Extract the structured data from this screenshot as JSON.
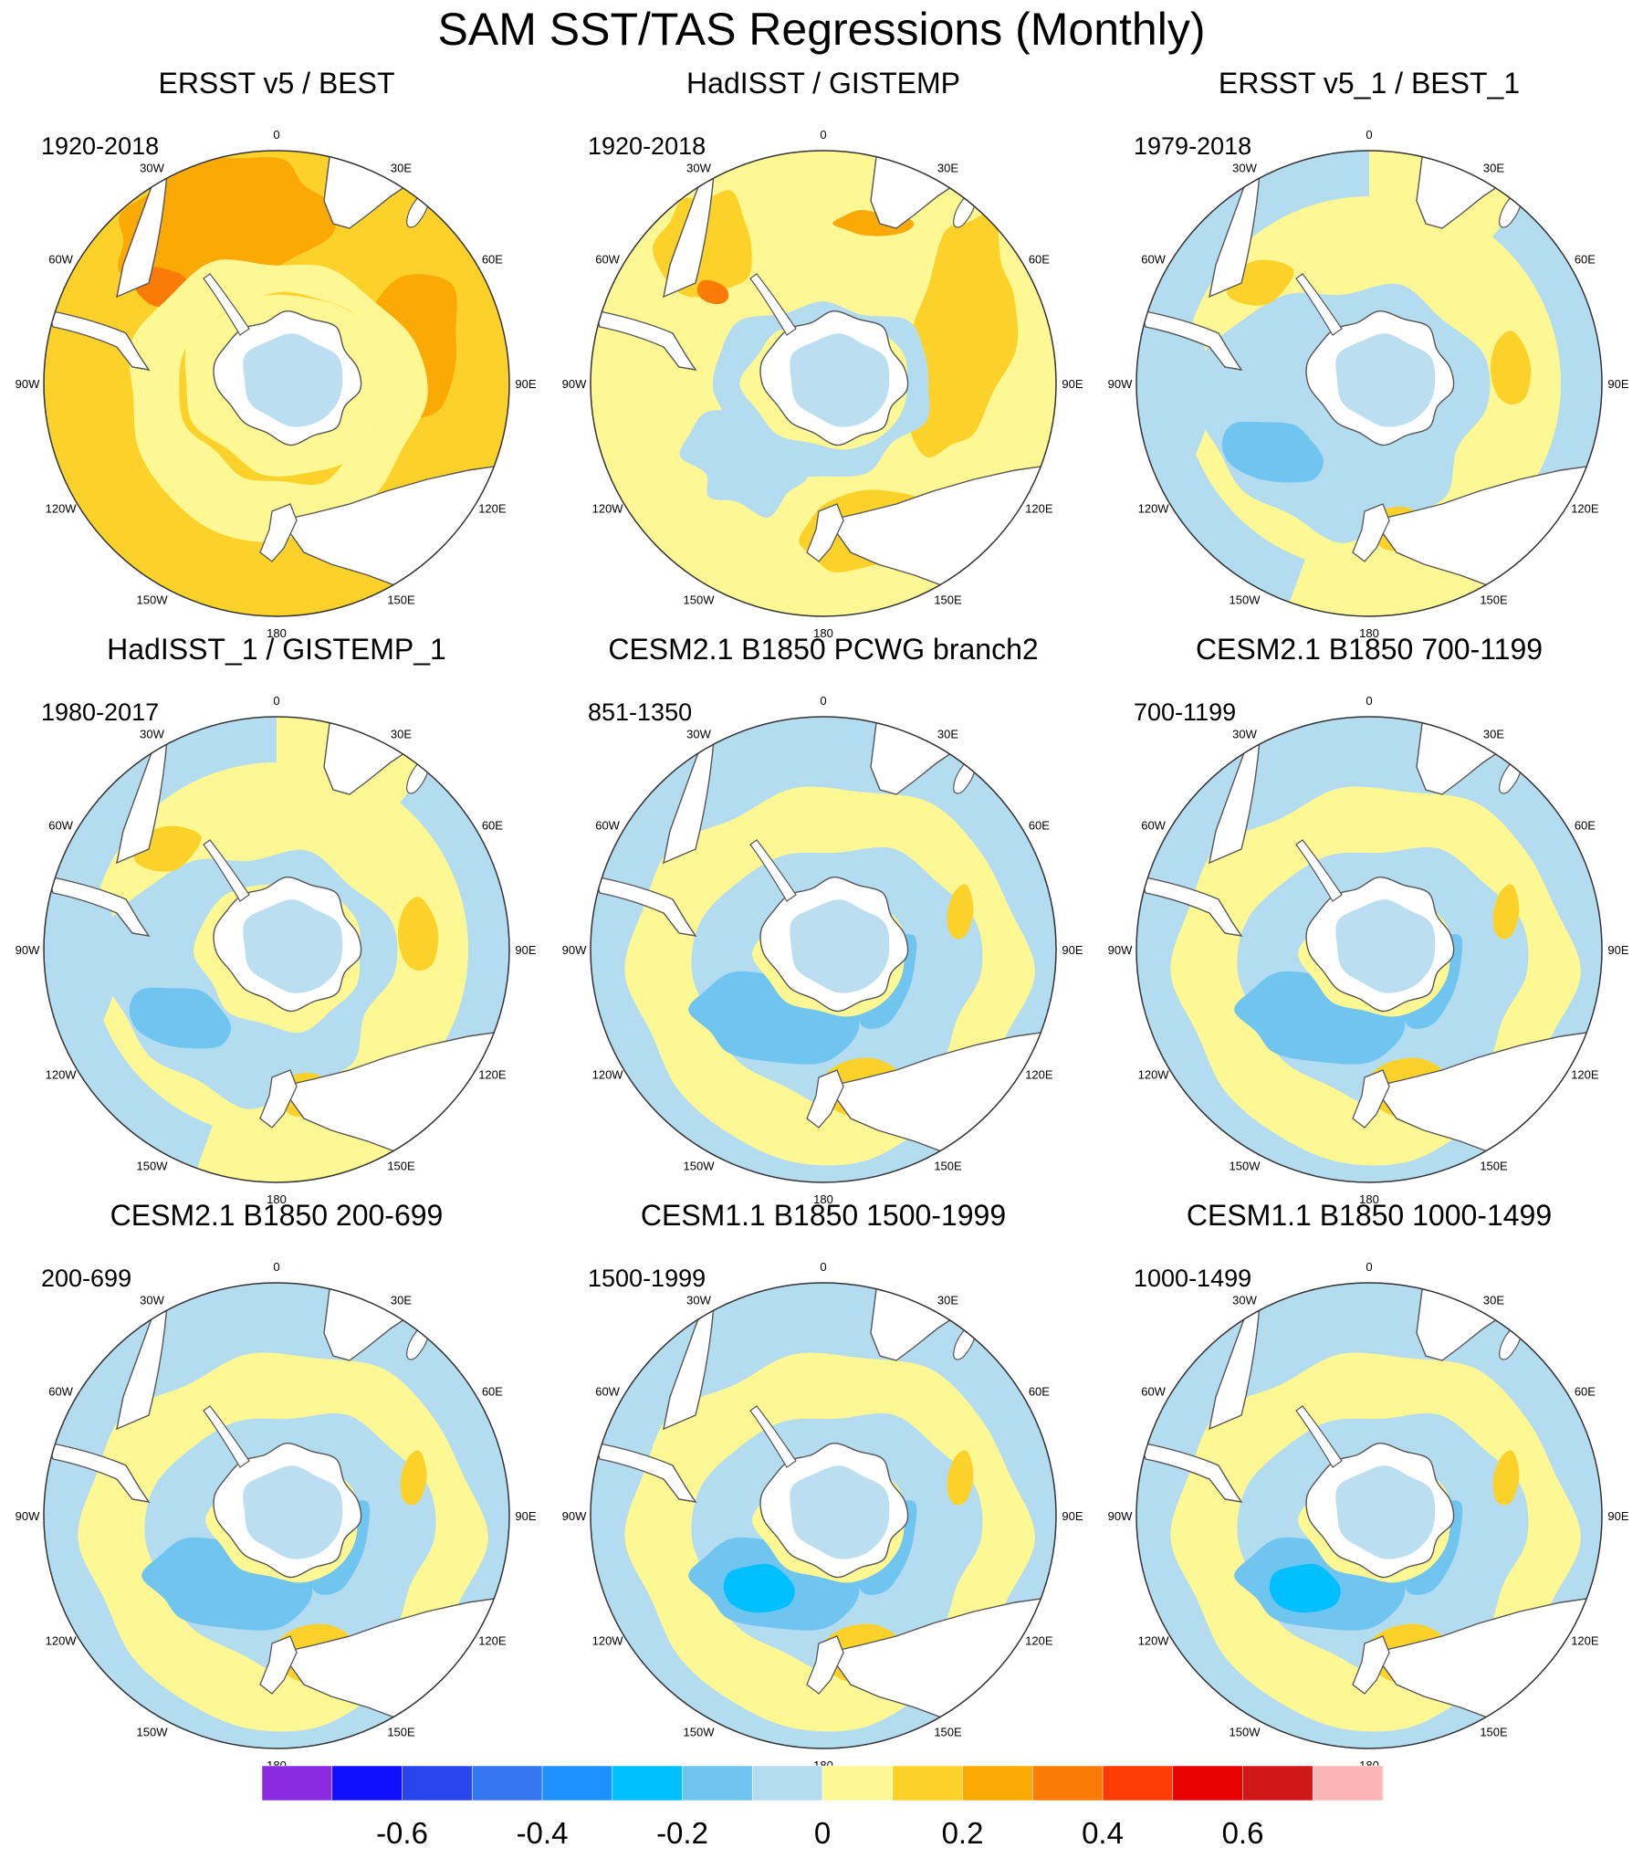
{
  "title": "SAM SST/TAS Regressions (Monthly)",
  "colors": {
    "background": "#ffffff",
    "land": "#ffffff",
    "coastline": "#555555",
    "border": "#333333"
  },
  "lon_labels": [
    "0",
    "30E",
    "60E",
    "90E",
    "120E",
    "150E",
    "180",
    "150W",
    "120W",
    "90W",
    "60W",
    "30W"
  ],
  "panels": [
    {
      "title": "ERSST v5 / BEST",
      "period": "1920-2018",
      "style": "obs_warm"
    },
    {
      "title": "HadISST / GISTEMP",
      "period": "1920-2018",
      "style": "obs_mixed"
    },
    {
      "title": "ERSST v5_1 / BEST_1",
      "period": "1979-2018",
      "style": "obs_recent"
    },
    {
      "title": "HadISST_1 / GISTEMP_1",
      "period": "1980-2017",
      "style": "obs_recent2"
    },
    {
      "title": "CESM2.1 B1850 PCWG branch2",
      "period": "851-1350",
      "style": "model"
    },
    {
      "title": "CESM2.1 B1850 700-1199",
      "period": "700-1199",
      "style": "model"
    },
    {
      "title": "CESM2.1 B1850 200-699",
      "period": "200-699",
      "style": "model"
    },
    {
      "title": "CESM1.1 B1850 1500-1999",
      "period": "1500-1999",
      "style": "model_strong"
    },
    {
      "title": "CESM1.1 B1850 1000-1499",
      "period": "1000-1499",
      "style": "model_strong"
    }
  ],
  "colorbar": {
    "colors": [
      "#8a2be2",
      "#1010ff",
      "#2a45ee",
      "#3477f0",
      "#1e90ff",
      "#00bfff",
      "#70c4f0",
      "#b4dcf0",
      "#fef894",
      "#fcd22a",
      "#fba905",
      "#fb7b08",
      "#fd3c06",
      "#e80000",
      "#d01818",
      "#fbb5b5"
    ],
    "labels": [
      "-0.6",
      "-0.4",
      "-0.2",
      "0",
      "0.2",
      "0.4",
      "0.6"
    ]
  }
}
